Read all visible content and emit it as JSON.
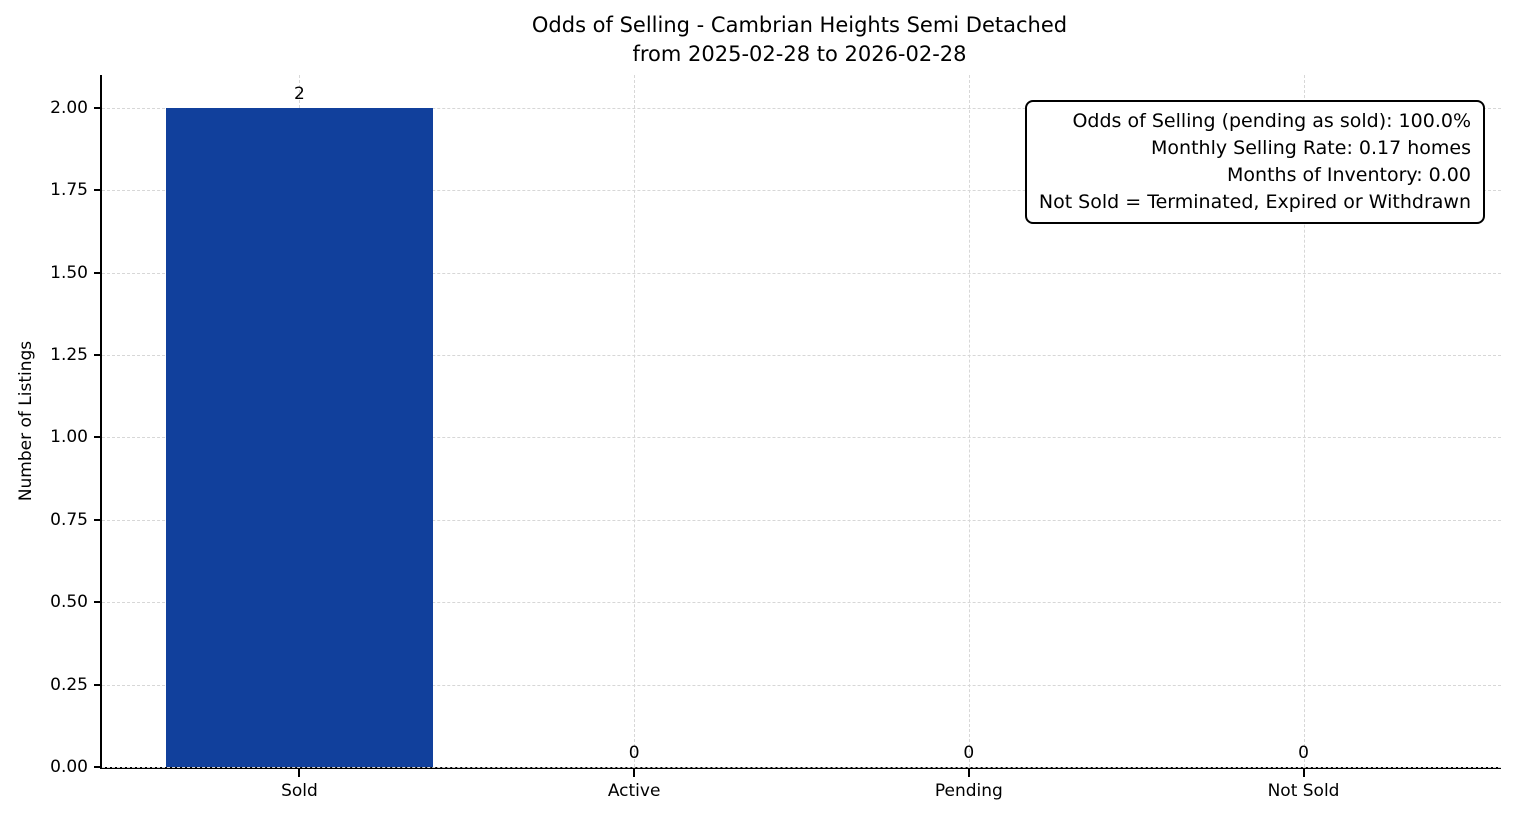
{
  "title": {
    "line1": "Odds of Selling - Cambrian Heights Semi Detached",
    "line2": "from 2025-02-28 to 2026-02-28"
  },
  "chart_data": {
    "type": "bar",
    "title": "Odds of Selling - Cambrian Heights Semi Detached\nfrom 2025-02-28 to 2026-02-28",
    "categories": [
      "Sold",
      "Active",
      "Pending",
      "Not Sold"
    ],
    "values": [
      2,
      0,
      0,
      0
    ],
    "bar_value_labels": [
      "2",
      "0",
      "0",
      "0"
    ],
    "xlabel": "",
    "ylabel": "Number of Listings",
    "ytick_values": [
      0,
      0.25,
      0.5,
      0.75,
      1,
      1.25,
      1.5,
      1.75,
      2
    ],
    "ytick_labels": [
      "0.00",
      "0.25",
      "0.50",
      "0.75",
      "1.00",
      "1.25",
      "1.50",
      "1.75",
      "2.00"
    ],
    "ylim": [
      0,
      2.1
    ],
    "xlim": [
      -0.59,
      3.59
    ],
    "bar_width_units": 0.8,
    "bar_color": "#11409c",
    "grid": true,
    "grid_color": "#d7d7d7",
    "grid_style": "dashed",
    "legend_position": "none",
    "annotation_lines": [
      "Odds of Selling (pending as sold): 100.0%",
      "Monthly Selling Rate: 0.17 homes",
      "Months of Inventory: 0.00",
      "Not Sold = Terminated, Expired or Withdrawn"
    ]
  }
}
